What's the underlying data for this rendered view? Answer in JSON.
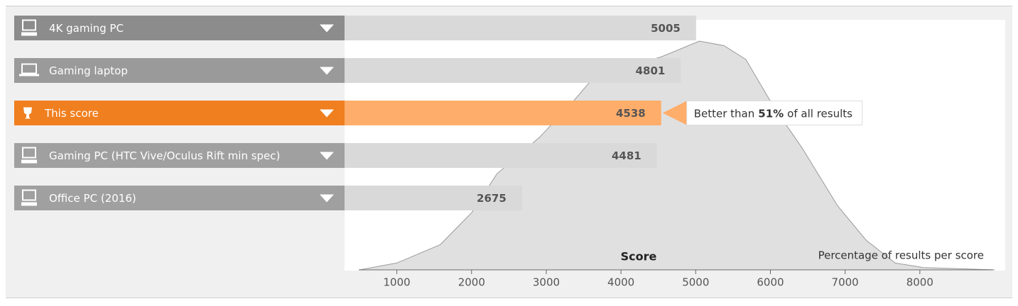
{
  "chart_data": {
    "type": "bar",
    "orientation": "horizontal",
    "categories": [
      "4K gaming PC",
      "Gaming laptop",
      "This score",
      "Gaming PC (HTC Vive/Oculus Rift min spec)",
      "Office PC (2016)"
    ],
    "values": [
      5005,
      4801,
      4538,
      4481,
      2675
    ],
    "bar_colors": [
      "#d9d9d9",
      "#d9d9d9",
      "#ffad6a",
      "#d9d9d9",
      "#d9d9d9"
    ],
    "label_colors": [
      "#8c8c8c",
      "#9a9a9a",
      "#f07f1f",
      "#a0a0a0",
      "#a0a0a0"
    ],
    "xlabel": "Score",
    "ylabel": "Percentage of results per score",
    "xlim": [
      300,
      9000
    ],
    "xticks": [
      1000,
      2000,
      3000,
      4000,
      5000,
      6000,
      7000,
      8000
    ],
    "annotation": {
      "prefix": "Better than",
      "value": "51%",
      "suffix": "of all results"
    },
    "distribution": {
      "color": "#d6d6d6",
      "x": [
        500,
        1000,
        1580,
        2000,
        2340,
        2910,
        3290,
        3580,
        3960,
        4530,
        5050,
        5380,
        5670,
        6050,
        6430,
        6900,
        7280,
        7670,
        8050,
        9000
      ],
      "values": [
        0,
        3,
        11,
        25,
        42,
        58,
        71,
        82,
        88,
        93,
        100,
        98,
        92,
        71,
        53,
        28,
        13,
        3,
        1,
        0
      ]
    }
  }
}
